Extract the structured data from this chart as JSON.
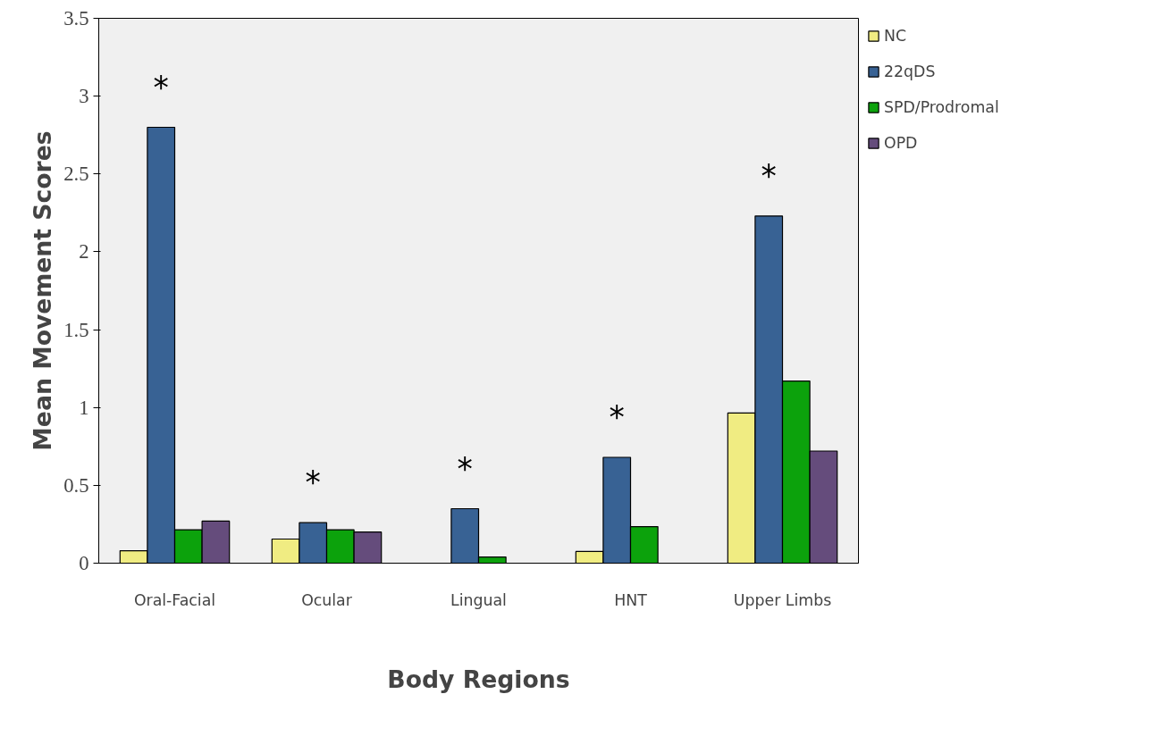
{
  "chart_data": {
    "type": "bar",
    "xlabel": "Body Regions",
    "ylabel": "Mean Movement Scores",
    "categories": [
      "Oral-Facial",
      "Ocular",
      "Lingual",
      "HNT",
      "Upper Limbs"
    ],
    "series": [
      {
        "name": "NC",
        "color": "#f0ec82",
        "values": [
          0.08,
          0.155,
          null,
          0.075,
          0.965
        ]
      },
      {
        "name": "22qDS",
        "color": "#386294",
        "values": [
          2.8,
          0.26,
          0.35,
          0.68,
          2.23
        ]
      },
      {
        "name": "SPD/Prodromal",
        "color": "#0ca20c",
        "values": [
          0.215,
          0.215,
          0.04,
          0.235,
          1.17
        ]
      },
      {
        "name": "OPD",
        "color": "#654c7c",
        "values": [
          0.27,
          0.2,
          null,
          null,
          0.72
        ]
      }
    ],
    "ylim": [
      0,
      3.5
    ],
    "yticks": [
      0,
      0.5,
      1,
      1.5,
      2,
      2.5,
      3,
      3.5
    ],
    "grid": false,
    "legend": "top right",
    "annotations": [
      "*",
      "*",
      "*",
      "*",
      "*"
    ]
  }
}
